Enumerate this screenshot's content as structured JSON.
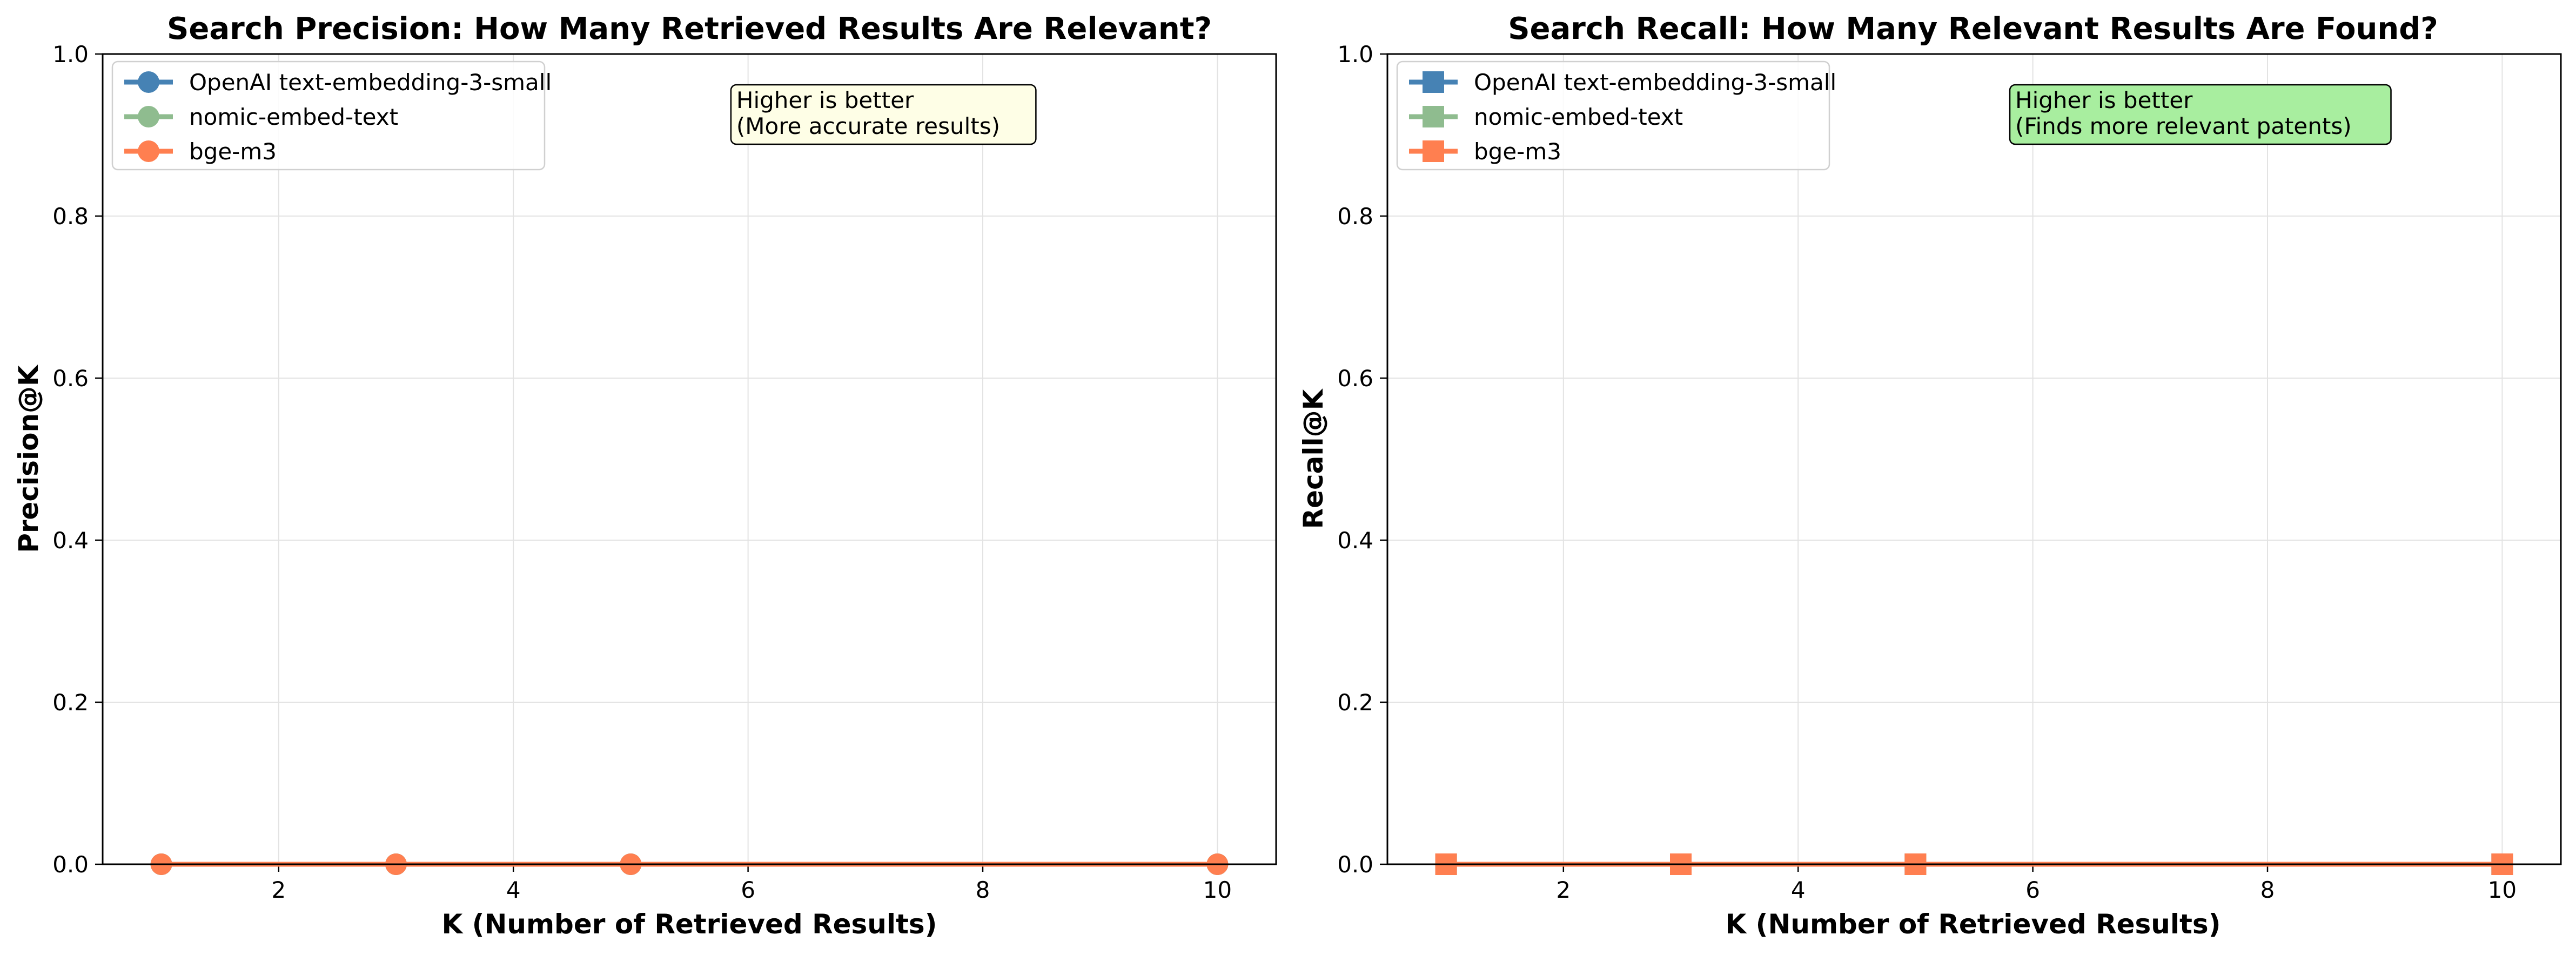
{
  "chart_data": [
    {
      "type": "line",
      "title": "Search Precision: How Many Retrieved Results Are Relevant?",
      "xlabel": "K (Number of Retrieved Results)",
      "ylabel": "Precision@K",
      "xlim": [
        0.5,
        10.5
      ],
      "ylim": [
        0,
        1.0
      ],
      "xticks": [
        2,
        4,
        6,
        8,
        10
      ],
      "yticks": [
        0.0,
        0.2,
        0.4,
        0.6,
        0.8,
        1.0
      ],
      "grid": true,
      "legend": "top-left",
      "marker": "circle",
      "annotation": {
        "lines": [
          "Higher is better",
          "(More accurate results)"
        ],
        "box_color": "#fefee6"
      },
      "x": [
        1,
        3,
        5,
        10
      ],
      "series": [
        {
          "name": "OpenAI text-embedding-3-small",
          "color": "#4682b4",
          "values": [
            0.0,
            0.0,
            0.0,
            0.0
          ]
        },
        {
          "name": "nomic-embed-text",
          "color": "#8fbc8f",
          "values": [
            0.0,
            0.0,
            0.0,
            0.0
          ]
        },
        {
          "name": "bge-m3",
          "color": "#ff7f50",
          "values": [
            0.0,
            0.0,
            0.0,
            0.0
          ]
        }
      ]
    },
    {
      "type": "line",
      "title": "Search Recall: How Many Relevant Results Are Found?",
      "xlabel": "K (Number of Retrieved Results)",
      "ylabel": "Recall@K",
      "xlim": [
        0.5,
        10.5
      ],
      "ylim": [
        0,
        1.0
      ],
      "xticks": [
        2,
        4,
        6,
        8,
        10
      ],
      "yticks": [
        0.0,
        0.2,
        0.4,
        0.6,
        0.8,
        1.0
      ],
      "grid": true,
      "legend": "top-left",
      "marker": "square",
      "annotation": {
        "lines": [
          "Higher is better",
          "(Finds more relevant patents)"
        ],
        "box_color": "#a8ee9f"
      },
      "x": [
        1,
        3,
        5,
        10
      ],
      "series": [
        {
          "name": "OpenAI text-embedding-3-small",
          "color": "#4682b4",
          "values": [
            0.0,
            0.0,
            0.0,
            0.0
          ]
        },
        {
          "name": "nomic-embed-text",
          "color": "#8fbc8f",
          "values": [
            0.0,
            0.0,
            0.0,
            0.0
          ]
        },
        {
          "name": "bge-m3",
          "color": "#ff7f50",
          "values": [
            0.0,
            0.0,
            0.0,
            0.0
          ]
        }
      ]
    }
  ]
}
